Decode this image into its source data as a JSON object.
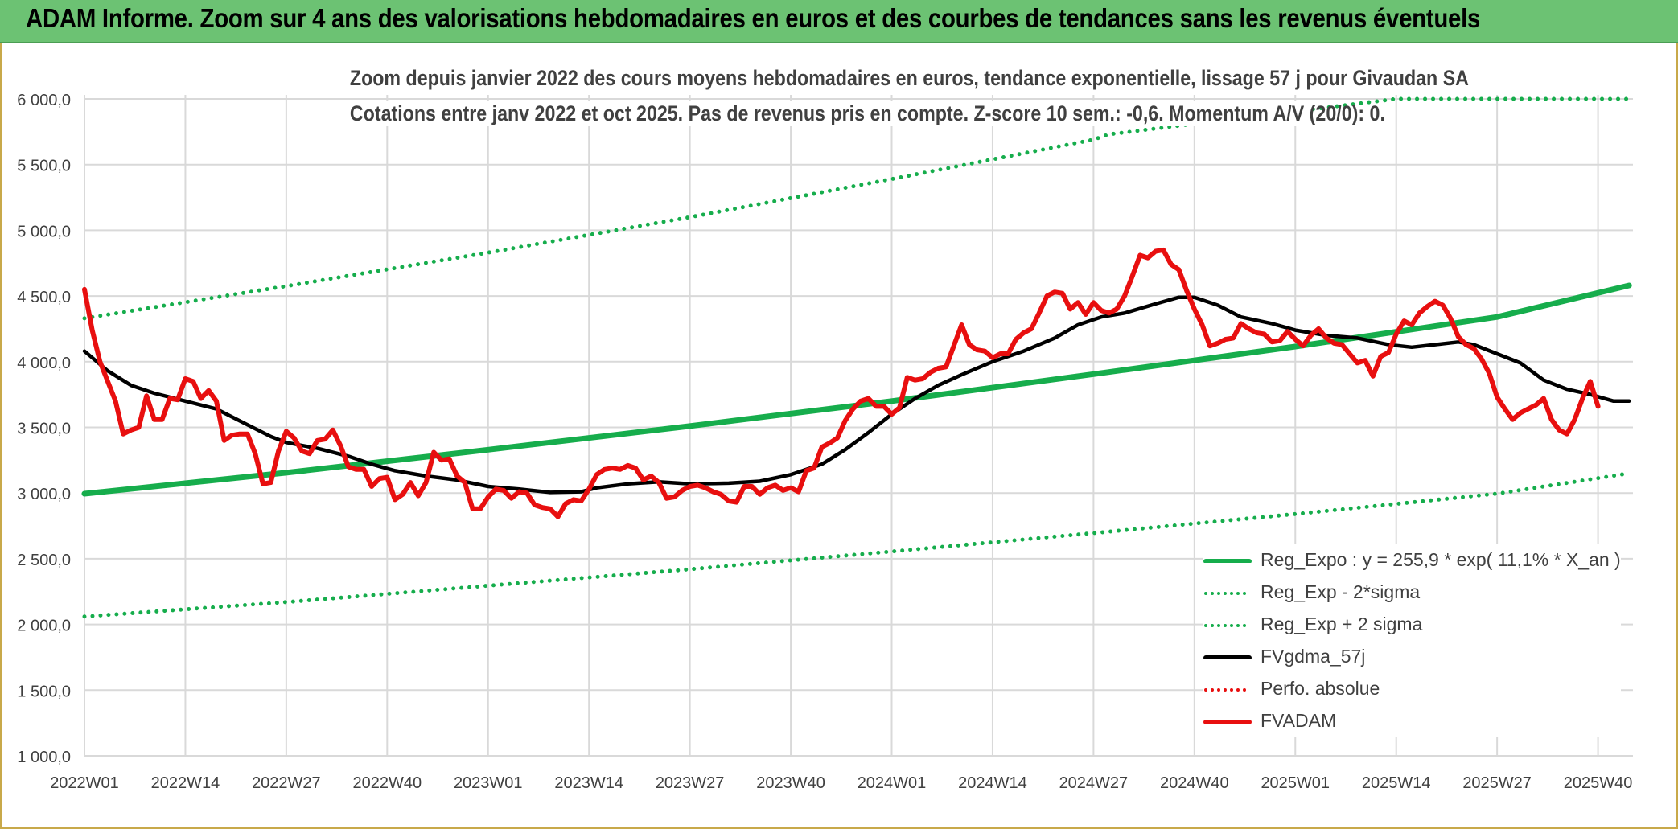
{
  "header": {
    "title": "ADAM Informe. Zoom sur 4 ans des valorisations hebdomadaires en euros et des courbes de tendances sans les revenus éventuels"
  },
  "chart": {
    "title_line1": "Zoom depuis janvier 2022 des cours moyens hebdomadaires en euros, tendance exponentielle, lissage 57 j pour Givaudan SA",
    "title_line2": "Cotations entre janv 2022 et oct 2025. Pas de revenus pris en compte. Z-score 10 sem.: -0,6. Momentum A/V (20/0): 0."
  },
  "colors": {
    "header_bg": "#6cc273",
    "trend_green": "#16ad4c",
    "smooth_black": "#000000",
    "price_red": "#e80f0f",
    "grid": "#d9d9d9",
    "axis_text": "#404040"
  },
  "chart_data": {
    "type": "line",
    "ylim": [
      1000,
      6000
    ],
    "yticks": [
      "1 000,0",
      "1 500,0",
      "2 000,0",
      "2 500,0",
      "3 000,0",
      "3 500,0",
      "4 000,0",
      "4 500,0",
      "5 000,0",
      "5 500,0",
      "6 000,0"
    ],
    "xticks": [
      "2022W01",
      "2022W14",
      "2022W27",
      "2022W40",
      "2023W01",
      "2023W14",
      "2023W27",
      "2023W40",
      "2024W01",
      "2024W14",
      "2024W27",
      "2024W40",
      "2025W01",
      "2025W14",
      "2025W27",
      "2025W40"
    ],
    "x_week_index_of_ticks": [
      0,
      13,
      26,
      39,
      52,
      65,
      78,
      91,
      104,
      117,
      130,
      143,
      156,
      169,
      182,
      195
    ],
    "legend": [
      {
        "name": "Reg_Expo : y = 255,9 * exp( 11,1% *  X_an )",
        "color": "#16ad4c",
        "style": "solid"
      },
      {
        "name": "Reg_Exp - 2*sigma",
        "color": "#16ad4c",
        "style": "dotted"
      },
      {
        "name": "Reg_Exp + 2 sigma",
        "color": "#16ad4c",
        "style": "dotted"
      },
      {
        "name": "FVgdma_57j",
        "color": "#000000",
        "style": "solid"
      },
      {
        "name": "Perfo. absolue",
        "color": "#e80f0f",
        "style": "dotted"
      },
      {
        "name": "FVADAM",
        "color": "#e80f0f",
        "style": "solid"
      }
    ],
    "series": [
      {
        "name": "Reg_Expo : y = 255,9 * exp( 11,1% *  X_an )",
        "key": "reg",
        "color": "#16ad4c",
        "style": "solid",
        "points": [
          [
            0,
            2995
          ],
          [
            26,
            3155
          ],
          [
            52,
            3330
          ],
          [
            78,
            3510
          ],
          [
            104,
            3700
          ],
          [
            130,
            3905
          ],
          [
            156,
            4115
          ],
          [
            182,
            4340
          ],
          [
            199,
            4580
          ]
        ]
      },
      {
        "name": "Reg_Exp - 2*sigma",
        "key": "low",
        "color": "#16ad4c",
        "style": "dotted",
        "points": [
          [
            0,
            2060
          ],
          [
            26,
            2170
          ],
          [
            52,
            2295
          ],
          [
            78,
            2420
          ],
          [
            104,
            2555
          ],
          [
            130,
            2695
          ],
          [
            156,
            2840
          ],
          [
            182,
            2995
          ],
          [
            199,
            3150
          ]
        ]
      },
      {
        "name": "Reg_Exp + 2 sigma",
        "key": "high",
        "color": "#16ad4c",
        "style": "dotted",
        "points": [
          [
            0,
            4330
          ],
          [
            26,
            4575
          ],
          [
            52,
            4830
          ],
          [
            78,
            5100
          ],
          [
            104,
            5390
          ],
          [
            130,
            5690
          ],
          [
            132,
            5730
          ],
          [
            169,
            6000
          ],
          [
            199,
            6000
          ]
        ]
      },
      {
        "name": "FVgdma_57j",
        "key": "smooth",
        "color": "#000000",
        "style": "solid",
        "points": [
          [
            0,
            4080
          ],
          [
            3,
            3930
          ],
          [
            6,
            3820
          ],
          [
            9,
            3760
          ],
          [
            13,
            3700
          ],
          [
            17,
            3640
          ],
          [
            21,
            3520
          ],
          [
            24,
            3430
          ],
          [
            26,
            3385
          ],
          [
            30,
            3340
          ],
          [
            34,
            3280
          ],
          [
            37,
            3220
          ],
          [
            40,
            3170
          ],
          [
            44,
            3130
          ],
          [
            48,
            3100
          ],
          [
            52,
            3050
          ],
          [
            56,
            3030
          ],
          [
            60,
            3005
          ],
          [
            64,
            3010
          ],
          [
            66,
            3040
          ],
          [
            70,
            3070
          ],
          [
            74,
            3085
          ],
          [
            78,
            3070
          ],
          [
            83,
            3075
          ],
          [
            87,
            3090
          ],
          [
            91,
            3140
          ],
          [
            95,
            3220
          ],
          [
            98,
            3330
          ],
          [
            101,
            3460
          ],
          [
            104,
            3600
          ],
          [
            107,
            3720
          ],
          [
            110,
            3820
          ],
          [
            113,
            3900
          ],
          [
            117,
            4000
          ],
          [
            121,
            4080
          ],
          [
            125,
            4180
          ],
          [
            128,
            4280
          ],
          [
            131,
            4340
          ],
          [
            134,
            4370
          ],
          [
            138,
            4440
          ],
          [
            141,
            4490
          ],
          [
            143,
            4490
          ],
          [
            146,
            4430
          ],
          [
            149,
            4340
          ],
          [
            153,
            4290
          ],
          [
            156,
            4240
          ],
          [
            160,
            4200
          ],
          [
            164,
            4180
          ],
          [
            168,
            4130
          ],
          [
            171,
            4110
          ],
          [
            174,
            4130
          ],
          [
            177,
            4150
          ],
          [
            179,
            4130
          ],
          [
            182,
            4060
          ],
          [
            185,
            3990
          ],
          [
            188,
            3860
          ],
          [
            191,
            3790
          ],
          [
            194,
            3750
          ],
          [
            197,
            3700
          ],
          [
            199,
            3700
          ]
        ]
      },
      {
        "name": "FVADAM",
        "key": "price",
        "color": "#e80f0f",
        "style": "solid",
        "points": [
          [
            0,
            4550
          ],
          [
            1,
            4240
          ],
          [
            2,
            4000
          ],
          [
            3,
            3850
          ],
          [
            4,
            3700
          ],
          [
            5,
            3450
          ],
          [
            6,
            3480
          ],
          [
            7,
            3500
          ],
          [
            8,
            3740
          ],
          [
            9,
            3560
          ],
          [
            10,
            3560
          ],
          [
            11,
            3720
          ],
          [
            12,
            3710
          ],
          [
            13,
            3870
          ],
          [
            14,
            3850
          ],
          [
            15,
            3720
          ],
          [
            16,
            3780
          ],
          [
            17,
            3700
          ],
          [
            18,
            3400
          ],
          [
            19,
            3440
          ],
          [
            20,
            3450
          ],
          [
            21,
            3450
          ],
          [
            22,
            3300
          ],
          [
            23,
            3070
          ],
          [
            24,
            3080
          ],
          [
            25,
            3320
          ],
          [
            26,
            3470
          ],
          [
            27,
            3420
          ],
          [
            28,
            3320
          ],
          [
            29,
            3300
          ],
          [
            30,
            3400
          ],
          [
            31,
            3410
          ],
          [
            32,
            3480
          ],
          [
            33,
            3360
          ],
          [
            34,
            3200
          ],
          [
            35,
            3180
          ],
          [
            36,
            3180
          ],
          [
            37,
            3050
          ],
          [
            38,
            3110
          ],
          [
            39,
            3120
          ],
          [
            40,
            2950
          ],
          [
            41,
            2990
          ],
          [
            42,
            3080
          ],
          [
            43,
            2980
          ],
          [
            44,
            3080
          ],
          [
            45,
            3310
          ],
          [
            46,
            3250
          ],
          [
            47,
            3260
          ],
          [
            48,
            3130
          ],
          [
            49,
            3080
          ],
          [
            50,
            2880
          ],
          [
            51,
            2880
          ],
          [
            52,
            2970
          ],
          [
            53,
            3030
          ],
          [
            54,
            3020
          ],
          [
            55,
            2960
          ],
          [
            56,
            3010
          ],
          [
            57,
            3000
          ],
          [
            58,
            2910
          ],
          [
            59,
            2890
          ],
          [
            60,
            2880
          ],
          [
            61,
            2820
          ],
          [
            62,
            2920
          ],
          [
            63,
            2950
          ],
          [
            64,
            2940
          ],
          [
            65,
            3030
          ],
          [
            66,
            3140
          ],
          [
            67,
            3180
          ],
          [
            68,
            3190
          ],
          [
            69,
            3180
          ],
          [
            70,
            3210
          ],
          [
            71,
            3190
          ],
          [
            72,
            3100
          ],
          [
            73,
            3130
          ],
          [
            74,
            3080
          ],
          [
            75,
            2960
          ],
          [
            76,
            2970
          ],
          [
            77,
            3020
          ],
          [
            78,
            3050
          ],
          [
            79,
            3060
          ],
          [
            80,
            3040
          ],
          [
            81,
            3010
          ],
          [
            82,
            2990
          ],
          [
            83,
            2940
          ],
          [
            84,
            2930
          ],
          [
            85,
            3050
          ],
          [
            86,
            3050
          ],
          [
            87,
            2990
          ],
          [
            88,
            3040
          ],
          [
            89,
            3060
          ],
          [
            90,
            3020
          ],
          [
            91,
            3040
          ],
          [
            92,
            3010
          ],
          [
            93,
            3170
          ],
          [
            94,
            3190
          ],
          [
            95,
            3350
          ],
          [
            96,
            3380
          ],
          [
            97,
            3420
          ],
          [
            98,
            3550
          ],
          [
            99,
            3640
          ],
          [
            100,
            3700
          ],
          [
            101,
            3720
          ],
          [
            102,
            3660
          ],
          [
            103,
            3660
          ],
          [
            104,
            3600
          ],
          [
            105,
            3650
          ],
          [
            106,
            3880
          ],
          [
            107,
            3860
          ],
          [
            108,
            3870
          ],
          [
            109,
            3920
          ],
          [
            110,
            3950
          ],
          [
            111,
            3960
          ],
          [
            112,
            4120
          ],
          [
            113,
            4280
          ],
          [
            114,
            4130
          ],
          [
            115,
            4090
          ],
          [
            116,
            4080
          ],
          [
            117,
            4030
          ],
          [
            118,
            4060
          ],
          [
            119,
            4060
          ],
          [
            120,
            4170
          ],
          [
            121,
            4220
          ],
          [
            122,
            4250
          ],
          [
            123,
            4370
          ],
          [
            124,
            4500
          ],
          [
            125,
            4530
          ],
          [
            126,
            4520
          ],
          [
            127,
            4400
          ],
          [
            128,
            4450
          ],
          [
            129,
            4360
          ],
          [
            130,
            4450
          ],
          [
            131,
            4390
          ],
          [
            132,
            4370
          ],
          [
            133,
            4400
          ],
          [
            134,
            4500
          ],
          [
            135,
            4650
          ],
          [
            136,
            4810
          ],
          [
            137,
            4790
          ],
          [
            138,
            4840
          ],
          [
            139,
            4850
          ],
          [
            140,
            4740
          ],
          [
            141,
            4700
          ],
          [
            142,
            4540
          ],
          [
            143,
            4400
          ],
          [
            144,
            4280
          ],
          [
            145,
            4120
          ],
          [
            146,
            4140
          ],
          [
            147,
            4170
          ],
          [
            148,
            4180
          ],
          [
            149,
            4290
          ],
          [
            150,
            4250
          ],
          [
            151,
            4220
          ],
          [
            152,
            4210
          ],
          [
            153,
            4150
          ],
          [
            154,
            4160
          ],
          [
            155,
            4230
          ],
          [
            156,
            4170
          ],
          [
            157,
            4120
          ],
          [
            158,
            4200
          ],
          [
            159,
            4250
          ],
          [
            160,
            4180
          ],
          [
            161,
            4140
          ],
          [
            162,
            4130
          ],
          [
            163,
            4060
          ],
          [
            164,
            3990
          ],
          [
            165,
            4010
          ],
          [
            166,
            3890
          ],
          [
            167,
            4040
          ],
          [
            168,
            4070
          ],
          [
            169,
            4210
          ],
          [
            170,
            4310
          ],
          [
            171,
            4280
          ],
          [
            172,
            4370
          ],
          [
            173,
            4420
          ],
          [
            174,
            4460
          ],
          [
            175,
            4430
          ],
          [
            176,
            4330
          ],
          [
            177,
            4190
          ],
          [
            178,
            4130
          ],
          [
            179,
            4100
          ],
          [
            180,
            4020
          ],
          [
            181,
            3910
          ],
          [
            182,
            3730
          ],
          [
            183,
            3640
          ],
          [
            184,
            3560
          ],
          [
            185,
            3610
          ],
          [
            186,
            3640
          ],
          [
            187,
            3670
          ],
          [
            188,
            3720
          ],
          [
            189,
            3560
          ],
          [
            190,
            3480
          ],
          [
            191,
            3450
          ],
          [
            192,
            3560
          ],
          [
            193,
            3720
          ],
          [
            194,
            3850
          ],
          [
            195,
            3660
          ]
        ]
      }
    ]
  }
}
